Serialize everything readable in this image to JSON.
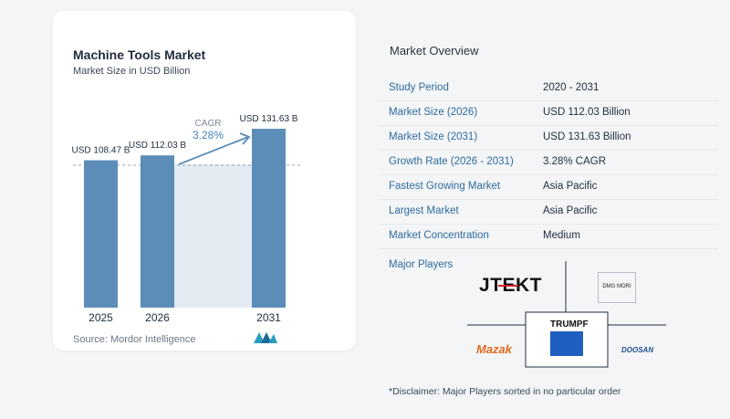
{
  "chart_header": {
    "title": "Machine Tools Market",
    "subtitle": "Market Size in USD Billion",
    "source": "Source:  Mordor Intelligence"
  },
  "chart_data": {
    "type": "bar",
    "title": "Machine Tools Market",
    "subtitle": "Market Size in USD Billion",
    "categories": [
      "2025",
      "2026",
      "2031"
    ],
    "values": [
      108.47,
      112.03,
      131.63
    ],
    "value_labels": [
      "USD 108.47 B",
      "USD 112.03 B",
      "USD 131.63 B"
    ],
    "cagr_label": "CAGR",
    "cagr_value": "3.28%",
    "bar_color": "#5b8db8",
    "shade_color": "#e3ebf3",
    "grid": false
  },
  "overview": {
    "title": "Market Overview",
    "rows": [
      {
        "label": "Study Period",
        "value": "2020 - 2031"
      },
      {
        "label": "Market Size (2026)",
        "value": "USD 112.03 Billion"
      },
      {
        "label": "Market Size (2031)",
        "value": "USD 131.63 Billion"
      },
      {
        "label": "Growth Rate (2026 - 2031)",
        "value": "3.28% CAGR"
      },
      {
        "label": "Fastest Growing Market",
        "value": "Asia Pacific"
      },
      {
        "label": "Largest Market",
        "value": "Asia Pacific"
      },
      {
        "label": "Market Concentration",
        "value": "Medium"
      }
    ],
    "players_title": "Major Players",
    "players": [
      "JTEKT",
      "DMG MORI",
      "TRUMPF",
      "Mazak",
      "DOOSAN"
    ],
    "disclaimer": "*Disclaimer: Major Players sorted in no particular order"
  },
  "colors": {
    "accent": "#2d6b9e",
    "bar": "#5b8db8",
    "arrow": "#5b8db8",
    "mazak": "#e36a1e",
    "trumpf": "#1f5fbf",
    "doosan": "#1f4e8c"
  }
}
